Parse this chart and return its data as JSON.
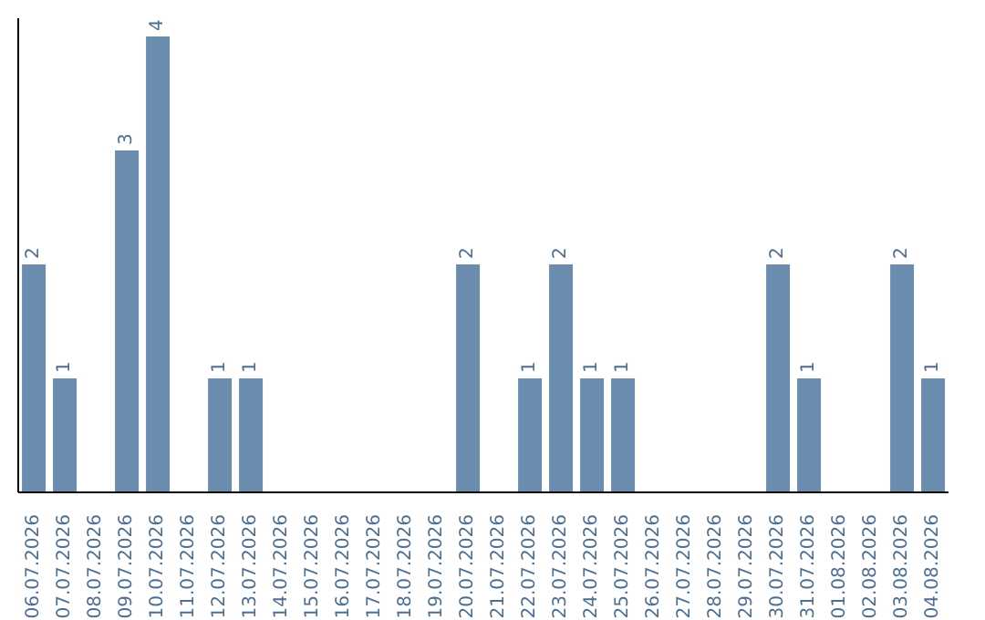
{
  "chart_data": {
    "type": "bar",
    "categories": [
      "06.07.2026",
      "07.07.2026",
      "08.07.2026",
      "09.07.2026",
      "10.07.2026",
      "11.07.2026",
      "12.07.2026",
      "13.07.2026",
      "14.07.2026",
      "15.07.2026",
      "16.07.2026",
      "17.07.2026",
      "18.07.2026",
      "19.07.2026",
      "20.07.2026",
      "21.07.2026",
      "22.07.2026",
      "23.07.2026",
      "24.07.2026",
      "25.07.2026",
      "26.07.2026",
      "27.07.2026",
      "28.07.2026",
      "29.07.2026",
      "30.07.2026",
      "31.07.2026",
      "01.08.2026",
      "02.08.2026",
      "03.08.2026",
      "04.08.2026"
    ],
    "values": [
      2,
      1,
      0,
      3,
      4,
      0,
      1,
      1,
      0,
      0,
      0,
      0,
      0,
      0,
      2,
      0,
      1,
      2,
      1,
      1,
      0,
      0,
      0,
      0,
      2,
      1,
      0,
      0,
      2,
      1
    ],
    "value_labels": [
      "2",
      "1",
      null,
      "3",
      "4",
      null,
      "1",
      "1",
      null,
      null,
      null,
      null,
      null,
      null,
      "2",
      null,
      "1",
      "2",
      "1",
      "1",
      null,
      null,
      null,
      null,
      "2",
      "1",
      null,
      null,
      "2",
      "1"
    ],
    "color": "#6a8caf"
  }
}
